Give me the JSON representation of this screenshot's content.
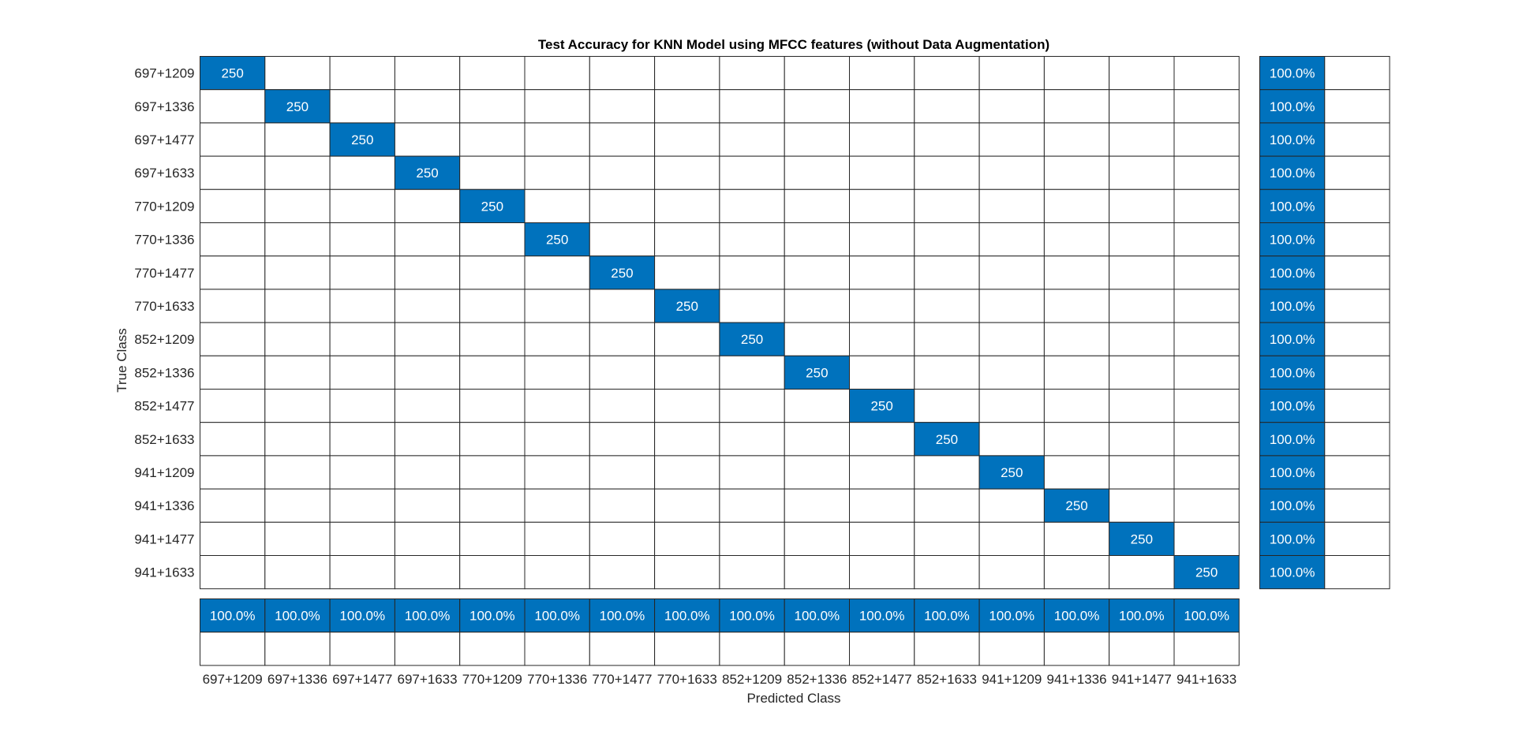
{
  "chart_data": {
    "type": "heatmap",
    "title": "Test Accuracy for KNN Model using MFCC features (without Data Augmentation)",
    "xlabel": "Predicted Class",
    "ylabel": "True Class",
    "classes": [
      "697+1209",
      "697+1336",
      "697+1477",
      "697+1633",
      "770+1209",
      "770+1336",
      "770+1477",
      "770+1633",
      "852+1209",
      "852+1336",
      "852+1477",
      "852+1633",
      "941+1209",
      "941+1336",
      "941+1477",
      "941+1633"
    ],
    "diagonal_values": [
      250,
      250,
      250,
      250,
      250,
      250,
      250,
      250,
      250,
      250,
      250,
      250,
      250,
      250,
      250,
      250
    ],
    "row_summary": [
      "100.0%",
      "100.0%",
      "100.0%",
      "100.0%",
      "100.0%",
      "100.0%",
      "100.0%",
      "100.0%",
      "100.0%",
      "100.0%",
      "100.0%",
      "100.0%",
      "100.0%",
      "100.0%",
      "100.0%",
      "100.0%"
    ],
    "column_summary": [
      "100.0%",
      "100.0%",
      "100.0%",
      "100.0%",
      "100.0%",
      "100.0%",
      "100.0%",
      "100.0%",
      "100.0%",
      "100.0%",
      "100.0%",
      "100.0%",
      "100.0%",
      "100.0%",
      "100.0%",
      "100.0%"
    ],
    "off_diagonal": "empty",
    "colors": {
      "filled": "#0072BD",
      "text_on_filled": "#ffffff",
      "grid": "#262626",
      "label": "#262626"
    }
  }
}
